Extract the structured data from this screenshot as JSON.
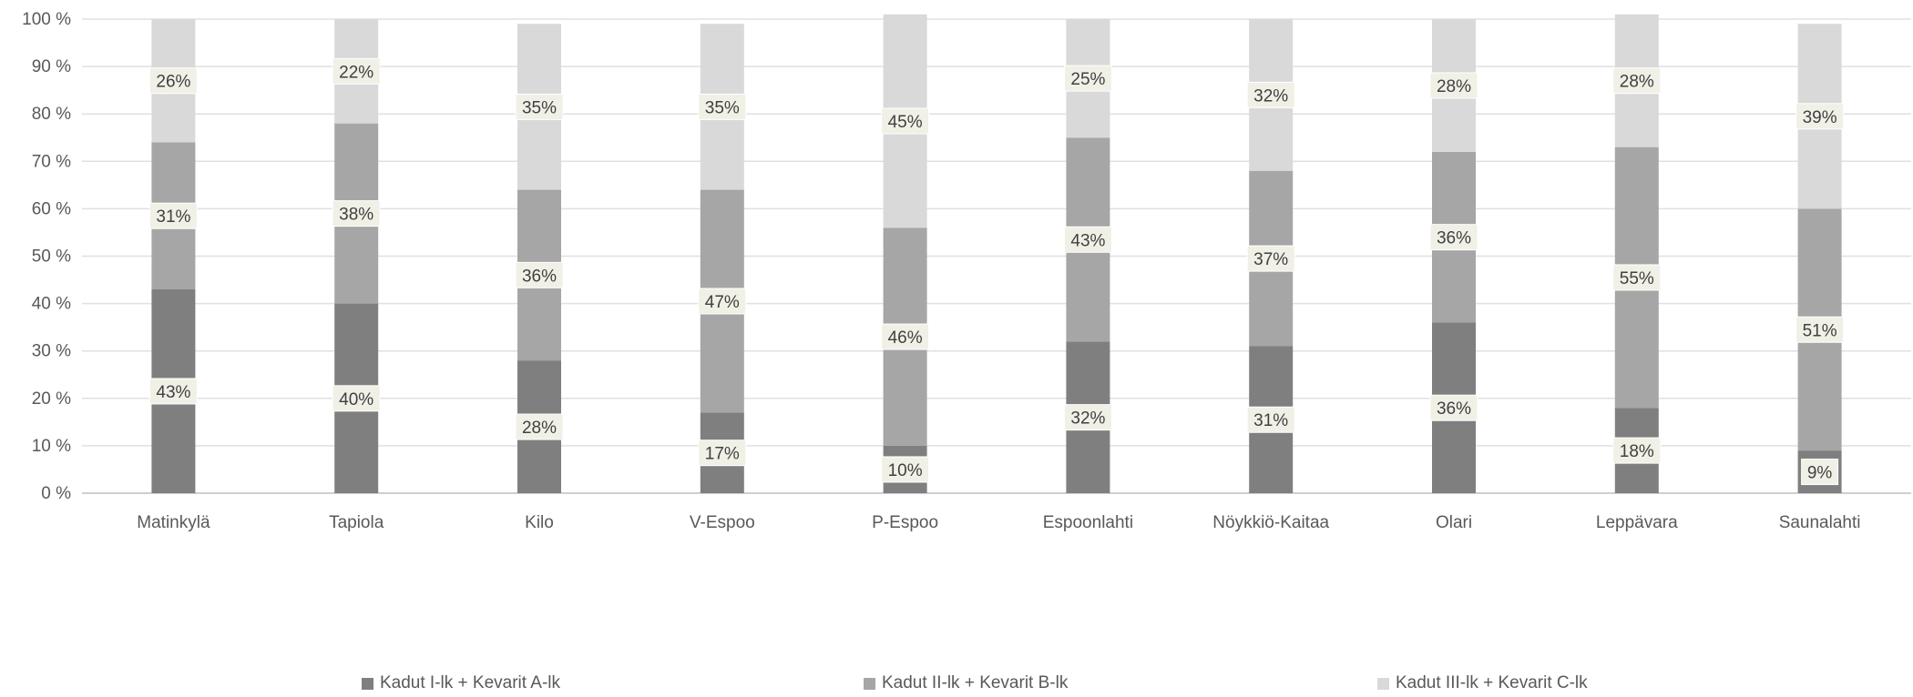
{
  "chart_data": {
    "type": "bar",
    "stacked": true,
    "percent_axis": true,
    "title": "",
    "xlabel": "",
    "ylabel": "",
    "ylim": [
      0,
      100
    ],
    "y_ticks": [
      "0 %",
      "10 %",
      "20 %",
      "30 %",
      "40 %",
      "50 %",
      "60 %",
      "70 %",
      "80 %",
      "90 %",
      "100 %"
    ],
    "grid": true,
    "legend_position": "bottom",
    "categories": [
      "Matinkylä",
      "Tapiola",
      "Kilo",
      "V-Espoo",
      "P-Espoo",
      "Espoonlahti",
      "Nöykkiö-Kaitaa",
      "Olari",
      "Leppävara",
      "Saunalahti"
    ],
    "series": [
      {
        "name": "Kadut I-lk + Kevarit A-lk",
        "color": "#7f7f7f",
        "values": [
          43,
          40,
          28,
          17,
          10,
          32,
          31,
          36,
          18,
          9
        ],
        "labels": [
          "43%",
          "40%",
          "28%",
          "17%",
          "10%",
          "32%",
          "31%",
          "36%",
          "18%",
          "9%"
        ]
      },
      {
        "name": "Kadut II-lk + Kevarit B-lk",
        "color": "#a6a6a6",
        "values": [
          31,
          38,
          36,
          47,
          46,
          43,
          37,
          36,
          55,
          51
        ],
        "labels": [
          "31%",
          "38%",
          "36%",
          "47%",
          "46%",
          "43%",
          "37%",
          "36%",
          "55%",
          "51%"
        ]
      },
      {
        "name": "Kadut III-lk + Kevarit C-lk",
        "color": "#d9d9d9",
        "values": [
          26,
          22,
          35,
          35,
          45,
          25,
          32,
          28,
          28,
          39
        ],
        "labels": [
          "26%",
          "22%",
          "35%",
          "35%",
          "45%",
          "25%",
          "32%",
          "28%",
          "28%",
          "39%"
        ]
      }
    ]
  }
}
